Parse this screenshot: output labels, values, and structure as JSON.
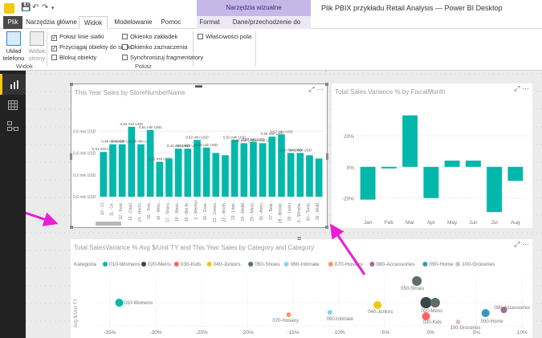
{
  "window": {
    "title": "Plik PBIX przykładu Retail Analysis — Power BI Desktop",
    "context_group": "Narzędzia wizualne"
  },
  "tabs": [
    {
      "label": "Plik"
    },
    {
      "label": "Narzędzia główne"
    },
    {
      "label": "Widok"
    },
    {
      "label": "Modelowanie"
    },
    {
      "label": "Pomoc"
    },
    {
      "label": "Format"
    },
    {
      "label": "Dane/przechodzenie do szczegółów"
    }
  ],
  "ribbon": {
    "phone_layout": "Układ telefonu",
    "page_view": "Widok strony",
    "view_group": "Widok",
    "show_group": "Pokaż",
    "checkboxes": [
      {
        "label": "Pokaż linie siatki",
        "checked": true
      },
      {
        "label": "Przyciągaj obiekty do siatki",
        "checked": true
      },
      {
        "label": "Blokuj obiekty",
        "checked": false
      },
      {
        "label": "Okienko zakładek",
        "checked": false
      },
      {
        "label": "Okienko zaznaczenia",
        "checked": false
      },
      {
        "label": "Synchronizuj fragmentatory",
        "checked": false
      },
      {
        "label": "Właściwości pola",
        "checked": false
      }
    ]
  },
  "visual1": {
    "title": "This Year Sales by StoreNumberName",
    "chart_data": {
      "type": "bar",
      "categories": [
        "10 - Cl...",
        "11 - Ce...",
        "12 - Kent...",
        "13 - Charl...",
        "14 - Harris...",
        "15 - York...",
        "16 - Winc...",
        "17 - Sharo...",
        "18 - Wash...",
        "19 - Bel Ai...",
        "2 - Weirton",
        "20 - Gree...",
        "21 - Zanes...",
        "22 - Worth...",
        "23 - Liber...",
        "24 - Middl...",
        "25 - Mans...",
        "26 - Ahen...",
        "27 - Bear...",
        "28 - Beckle...",
        "29 - Lexin...",
        "3 - Winche...",
        "30 - Tomb...",
        "32 - Midd..."
      ],
      "values": [
        0.41,
        0.48,
        0.48,
        0.64,
        0.48,
        0.61,
        0.32,
        0.35,
        0.44,
        0.44,
        0.52,
        0.45,
        0.4,
        0.38,
        0.52,
        0.49,
        0.5,
        0.49,
        0.55,
        0.57,
        0.4,
        0.4,
        0.38,
        0.35
      ],
      "data_labels": [
        "0,41 mln USD",
        "0,48 mln USD",
        "0,48 mln USD",
        "0,64 mln USD",
        "0,48 mln USD",
        "0,61 mln USD",
        "0,32 mln USD",
        "",
        "0,44 mln USD",
        "0,44 mln USD",
        "0,52 mln USD",
        "0,45 mln USD",
        "",
        "",
        "0,52 mln USD",
        "0,49 mln USD",
        "0,50 mln USD",
        "0,49 mln USD",
        "0,55 mln USD",
        "0,57 mln USD",
        "0,40 mln USD",
        "0,40 mln USD",
        "",
        ""
      ],
      "y_ticks": [
        "0,6 mln USD",
        "0,4 mln USD",
        "0,2 mln USD",
        "0,0 mln USD"
      ],
      "ylim": [
        0,
        0.75
      ],
      "color": "#01b8aa"
    }
  },
  "visual2": {
    "title": "Total Sales Variance % by FiscalMonth",
    "chart_data": {
      "type": "bar",
      "categories": [
        "Jan",
        "Feb",
        "Mar",
        "Apr",
        "May",
        "Jun",
        "Jul",
        "Aug"
      ],
      "values": [
        -21,
        -1,
        33,
        -20,
        4,
        4,
        -29,
        -9
      ],
      "y_ticks": [
        "20%",
        "0%",
        "-20%"
      ],
      "ylim": [
        -32,
        38
      ],
      "color": "#01b8aa"
    }
  },
  "visual3": {
    "title": "Total SalesVariance % Avg $/Unit TY and This Year Sales by Category and Category",
    "legend_title": "Kategoria",
    "y_axis_label": "Avg $/Unit TY",
    "chart_data": {
      "type": "scatter",
      "legend": [
        {
          "name": "010-Womens",
          "color": "#01b8aa"
        },
        {
          "name": "020-Mens",
          "color": "#374649"
        },
        {
          "name": "030-Kids",
          "color": "#fd625e"
        },
        {
          "name": "040-Juniors",
          "color": "#f2c80f"
        },
        {
          "name": "050-Shoes",
          "color": "#5f6b6d"
        },
        {
          "name": "060-Intimate",
          "color": "#8ad4eb"
        },
        {
          "name": "070-Hosiery",
          "color": "#fe9666"
        },
        {
          "name": "080-Accessories",
          "color": "#a66999"
        },
        {
          "name": "090-Home",
          "color": "#3599b8"
        },
        {
          "name": "100-Groceries",
          "color": "#dfbfbf"
        }
      ],
      "points": [
        {
          "label": "010-Womens",
          "x": -34,
          "color": "#01b8aa",
          "r": 5
        },
        {
          "label": "070-Hosiery",
          "x": -15.5,
          "color": "#fe9666",
          "r": 3
        },
        {
          "label": "060-Intimate",
          "x": -11,
          "color": "#8ad4eb",
          "r": 3
        },
        {
          "label": "040-Juniors",
          "x": -5.8,
          "color": "#f2c80f",
          "r": 5
        },
        {
          "label": "050-Shoes",
          "x": -1.5,
          "color": "#5f6b6d",
          "r": 6
        },
        {
          "label": "020-Mens",
          "x": -0.5,
          "color": "#374649",
          "r": 7
        },
        {
          "label": "030-Kids",
          "x": -0.5,
          "color": "#fd625e",
          "r": 5
        },
        {
          "label": "",
          "x": 0.5,
          "color": "#5f6b6d",
          "r": 6
        },
        {
          "label": "100-Groceries",
          "x": 3,
          "color": "#dfbfbf",
          "r": 3
        },
        {
          "label": "090-Home",
          "x": 6,
          "color": "#3599b8",
          "r": 5
        },
        {
          "label": "080-Accessories",
          "x": 8,
          "color": "#a66999",
          "r": 4
        }
      ],
      "x_ticks": [
        "-35%",
        "-30%",
        "-25%",
        "-20%",
        "-15%",
        "-10%",
        "-5%",
        "0%",
        "5%",
        "10%"
      ],
      "xlim": [
        -36.5,
        10.5
      ]
    }
  }
}
